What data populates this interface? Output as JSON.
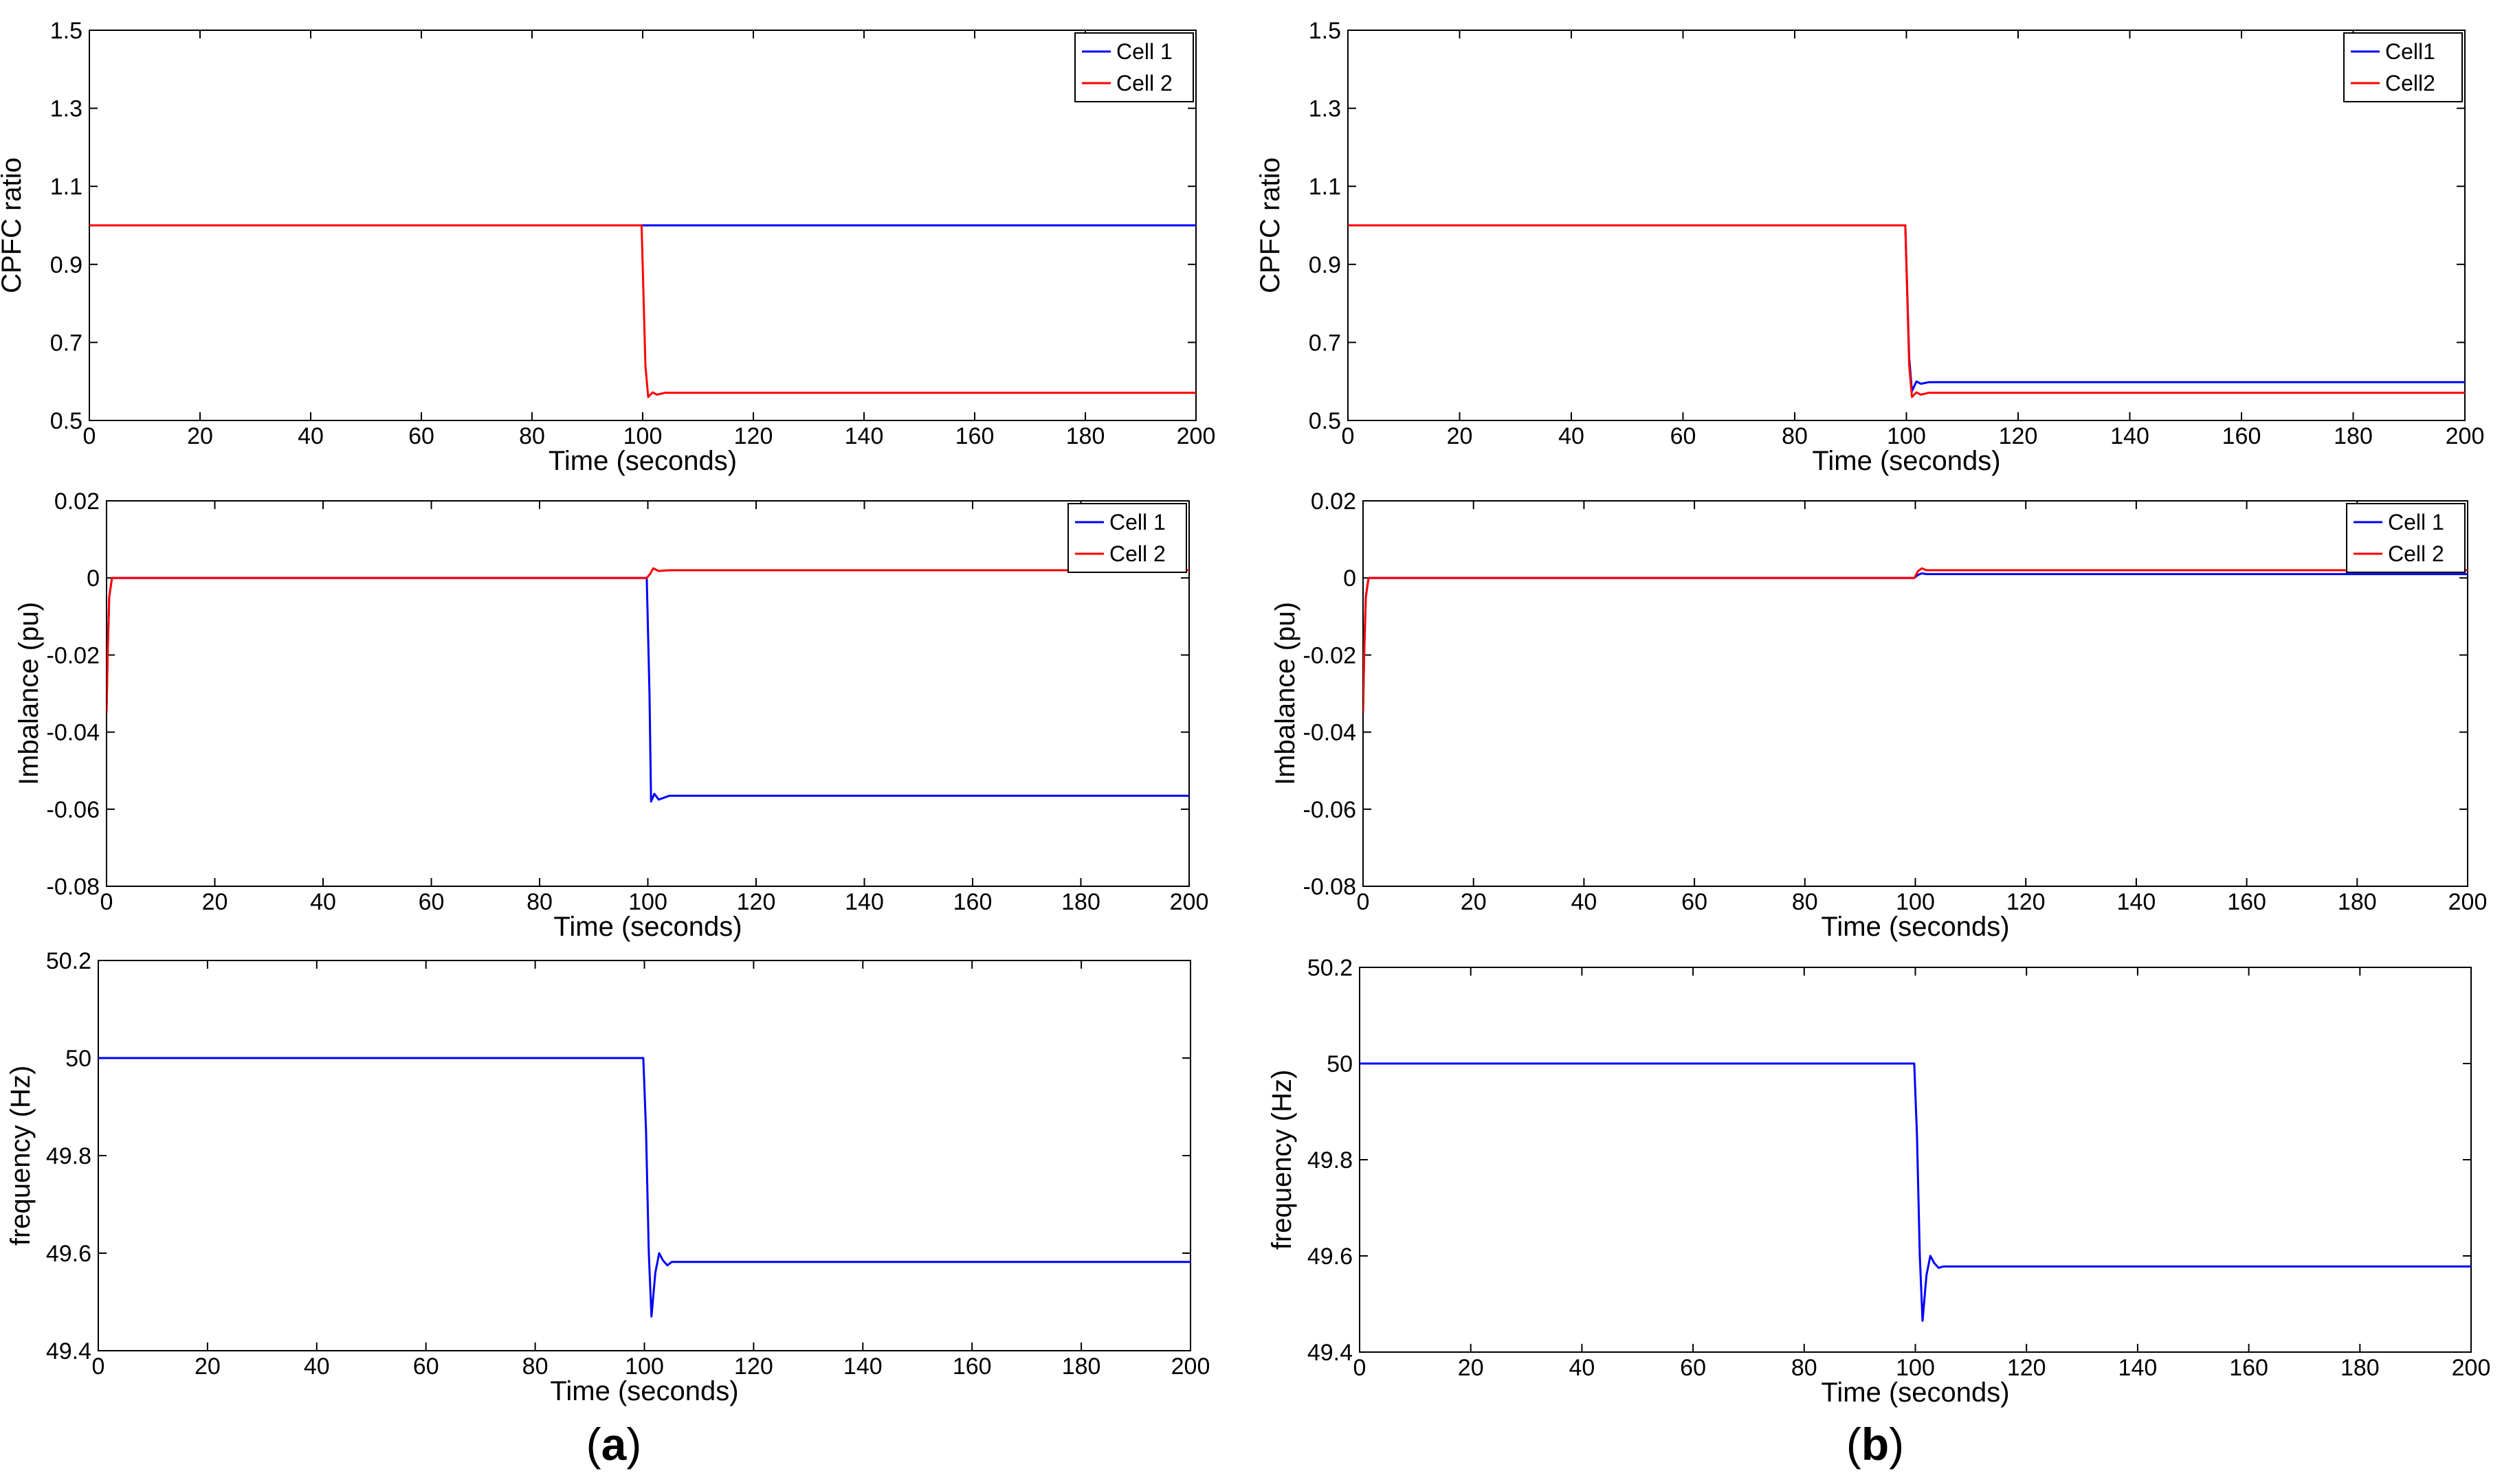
{
  "figure": {
    "panel_labels": [
      {
        "open": "(",
        "letter": "a",
        "close": ")"
      },
      {
        "open": "(",
        "letter": "b",
        "close": ")"
      }
    ],
    "colors": {
      "cell1": "#0000ff",
      "cell2": "#ff0000",
      "axis": "#000000",
      "background": "#ffffff"
    }
  },
  "chart_data": [
    {
      "type": "line",
      "column": "a",
      "row": 0,
      "title": "",
      "xlabel": "Time (seconds)",
      "ylabel": "CPFC ratio",
      "xlim": [
        0,
        200
      ],
      "ylim": [
        0.5,
        1.5
      ],
      "xticks": [
        0,
        20,
        40,
        60,
        80,
        100,
        120,
        140,
        160,
        180,
        200
      ],
      "xtick_labels": [
        "0",
        "20",
        "40",
        "60",
        "80",
        "100",
        "120",
        "140",
        "160",
        "180",
        "200"
      ],
      "yticks": [
        0.5,
        0.7,
        0.9,
        1.1,
        1.3,
        1.5
      ],
      "ytick_labels": [
        "0.5",
        "0.7",
        "0.9",
        "1.1",
        "1.3",
        "1.5"
      ],
      "legend": {
        "position": "top-right",
        "entries": [
          "Cell 1",
          "Cell 2"
        ]
      },
      "series": [
        {
          "name": "Cell 1",
          "color": "#0000ff",
          "x": [
            0,
            100,
            200
          ],
          "y": [
            1.0,
            1.0,
            1.0
          ]
        },
        {
          "name": "Cell 2",
          "color": "#ff0000",
          "x": [
            0,
            99.8,
            100.5,
            101,
            101.8,
            102.6,
            104,
            200
          ],
          "y": [
            1.0,
            1.0,
            0.64,
            0.56,
            0.572,
            0.566,
            0.571,
            0.571
          ]
        }
      ]
    },
    {
      "type": "line",
      "column": "a",
      "row": 1,
      "title": "",
      "xlabel": "Time (seconds)",
      "ylabel": "Imbalance (pu)",
      "xlim": [
        0,
        200
      ],
      "ylim": [
        -0.08,
        0.02
      ],
      "xticks": [
        0,
        20,
        40,
        60,
        80,
        100,
        120,
        140,
        160,
        180,
        200
      ],
      "xtick_labels": [
        "0",
        "20",
        "40",
        "60",
        "80",
        "100",
        "120",
        "140",
        "160",
        "180",
        "200"
      ],
      "yticks": [
        -0.08,
        -0.06,
        -0.04,
        -0.02,
        0,
        0.02
      ],
      "ytick_labels": [
        "-0.08",
        "-0.06",
        "-0.04",
        "-0.02",
        "0",
        "0.02"
      ],
      "legend": {
        "position": "top-right",
        "entries": [
          "Cell 1",
          "Cell 2"
        ]
      },
      "series": [
        {
          "name": "Cell 1",
          "color": "#0000ff",
          "x": [
            0,
            0.2,
            0.5,
            1,
            99.8,
            100.3,
            100.6,
            101.2,
            102,
            104,
            200
          ],
          "y": [
            -0.035,
            -0.02,
            -0.005,
            0,
            0,
            -0.03,
            -0.058,
            -0.056,
            -0.0575,
            -0.0565,
            -0.0565
          ]
        },
        {
          "name": "Cell 2",
          "color": "#ff0000",
          "x": [
            0,
            0.2,
            0.5,
            1,
            99.8,
            100.4,
            101,
            102,
            104,
            200
          ],
          "y": [
            -0.035,
            -0.02,
            -0.005,
            0,
            0,
            0.001,
            0.0025,
            0.0018,
            0.002,
            0.002
          ]
        }
      ]
    },
    {
      "type": "line",
      "column": "a",
      "row": 2,
      "title": "",
      "xlabel": "Time (seconds)",
      "ylabel": "frequency (Hz)",
      "xlim": [
        0,
        200
      ],
      "ylim": [
        49.4,
        50.2
      ],
      "xticks": [
        0,
        20,
        40,
        60,
        80,
        100,
        120,
        140,
        160,
        180,
        200
      ],
      "xtick_labels": [
        "0",
        "20",
        "40",
        "60",
        "80",
        "100",
        "120",
        "140",
        "160",
        "180",
        "200"
      ],
      "yticks": [
        49.4,
        49.6,
        49.8,
        50,
        50.2
      ],
      "ytick_labels": [
        "49.4",
        "49.6",
        "49.8",
        "50",
        "50.2"
      ],
      "legend": null,
      "series": [
        {
          "name": "frequency",
          "color": "#0000ff",
          "x": [
            0,
            99.8,
            100.3,
            100.8,
            101.3,
            102,
            102.7,
            103.4,
            104.2,
            105,
            200
          ],
          "y": [
            50.0,
            50.0,
            49.85,
            49.6,
            49.47,
            49.56,
            49.6,
            49.585,
            49.575,
            49.582,
            49.582
          ]
        }
      ]
    },
    {
      "type": "line",
      "column": "b",
      "row": 0,
      "title": "",
      "xlabel": "Time (seconds)",
      "ylabel": "CPFC ratio",
      "xlim": [
        0,
        200
      ],
      "ylim": [
        0.5,
        1.5
      ],
      "xticks": [
        0,
        20,
        40,
        60,
        80,
        100,
        120,
        140,
        160,
        180,
        200
      ],
      "xtick_labels": [
        "0",
        "20",
        "40",
        "60",
        "80",
        "100",
        "120",
        "140",
        "160",
        "180",
        "200"
      ],
      "yticks": [
        0.5,
        0.7,
        0.9,
        1.1,
        1.3,
        1.5
      ],
      "ytick_labels": [
        "0.5",
        "0.7",
        "0.9",
        "1.1",
        "1.3",
        "1.5"
      ],
      "legend": {
        "position": "top-right",
        "entries": [
          "Cell1",
          "Cell2"
        ]
      },
      "series": [
        {
          "name": "Cell1",
          "color": "#0000ff",
          "x": [
            0,
            99.8,
            100.5,
            101,
            101.8,
            102.6,
            104,
            200
          ],
          "y": [
            1.0,
            1.0,
            0.66,
            0.575,
            0.6,
            0.594,
            0.598,
            0.598
          ]
        },
        {
          "name": "Cell2",
          "color": "#ff0000",
          "x": [
            0,
            99.8,
            100.5,
            101,
            101.8,
            102.6,
            104,
            200
          ],
          "y": [
            1.0,
            1.0,
            0.64,
            0.56,
            0.572,
            0.566,
            0.571,
            0.571
          ]
        }
      ]
    },
    {
      "type": "line",
      "column": "b",
      "row": 1,
      "title": "",
      "xlabel": "Time (seconds)",
      "ylabel": "Imbalance (pu)",
      "xlim": [
        0,
        200
      ],
      "ylim": [
        -0.08,
        0.02
      ],
      "xticks": [
        0,
        20,
        40,
        60,
        80,
        100,
        120,
        140,
        160,
        180,
        200
      ],
      "xtick_labels": [
        "0",
        "20",
        "40",
        "60",
        "80",
        "100",
        "120",
        "140",
        "160",
        "180",
        "200"
      ],
      "yticks": [
        -0.08,
        -0.06,
        -0.04,
        -0.02,
        0,
        0.02
      ],
      "ytick_labels": [
        "-0.08",
        "-0.06",
        "-0.04",
        "-0.02",
        "0",
        "0.02"
      ],
      "legend": {
        "position": "top-right",
        "entries": [
          "Cell 1",
          "Cell 2"
        ]
      },
      "series": [
        {
          "name": "Cell 1",
          "color": "#0000ff",
          "x": [
            0,
            0.2,
            0.5,
            1,
            99.8,
            100.5,
            101.2,
            102,
            104,
            200
          ],
          "y": [
            -0.035,
            -0.02,
            -0.005,
            0,
            0,
            0.0008,
            0.0012,
            0.001,
            0.001,
            0.001
          ]
        },
        {
          "name": "Cell 2",
          "color": "#ff0000",
          "x": [
            0,
            0.2,
            0.5,
            1,
            99.8,
            100.5,
            101.2,
            102,
            104,
            200
          ],
          "y": [
            -0.035,
            -0.02,
            -0.005,
            0,
            0,
            0.0018,
            0.0025,
            0.002,
            0.002,
            0.002
          ]
        }
      ]
    },
    {
      "type": "line",
      "column": "b",
      "row": 2,
      "title": "",
      "xlabel": "Time (seconds)",
      "ylabel": "frequency (Hz)",
      "xlim": [
        0,
        200
      ],
      "ylim": [
        49.4,
        50.2
      ],
      "xticks": [
        0,
        20,
        40,
        60,
        80,
        100,
        120,
        140,
        160,
        180,
        200
      ],
      "xtick_labels": [
        "0",
        "20",
        "40",
        "60",
        "80",
        "100",
        "120",
        "140",
        "160",
        "180",
        "200"
      ],
      "yticks": [
        49.4,
        49.6,
        49.8,
        50,
        50.2
      ],
      "ytick_labels": [
        "49.4",
        "49.6",
        "49.8",
        "50",
        "50.2"
      ],
      "legend": null,
      "series": [
        {
          "name": "frequency",
          "color": "#0000ff",
          "x": [
            0,
            99.8,
            100.3,
            100.8,
            101.3,
            102,
            102.7,
            103.4,
            104.2,
            105,
            200
          ],
          "y": [
            50.0,
            50.0,
            49.85,
            49.6,
            49.465,
            49.56,
            49.6,
            49.585,
            49.575,
            49.578,
            49.578
          ]
        }
      ]
    }
  ]
}
